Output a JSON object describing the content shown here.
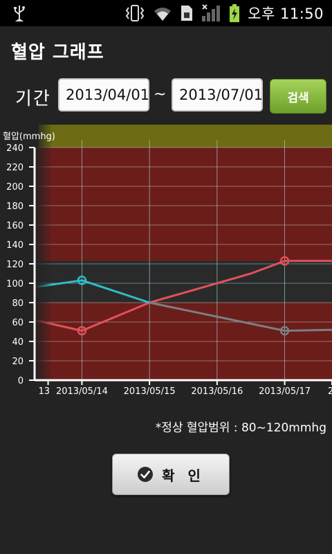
{
  "status_bar": {
    "time": "오후 11:50",
    "icons": [
      "usb-icon",
      "vibrate-icon",
      "wifi-icon",
      "sim-icon",
      "signal-icon",
      "battery-charging-icon"
    ]
  },
  "header": {
    "title": "혈압 그래프"
  },
  "period": {
    "label": "기간",
    "from": "2013/04/01",
    "separator": "~",
    "to": "2013/07/01",
    "search_label": "검색"
  },
  "colors": {
    "accent_green": "#8bbf3f",
    "high_band": "#6b1d1a",
    "top_band": "#6d6b14",
    "series_red": "#e0525a",
    "series_cyan": "#2fbdc7",
    "series_gray": "#7b7f82"
  },
  "chart_data": {
    "type": "line",
    "ylabel": "혈압(mmhg)",
    "ylim": [
      0,
      240
    ],
    "yticks": [
      "0",
      "20",
      "40",
      "60",
      "80",
      "100",
      "120",
      "140",
      "160",
      "180",
      "200",
      "220",
      "240"
    ],
    "x_tick_labels": [
      "13",
      "2013/05/14",
      "2013/05/15",
      "2013/05/16",
      "2013/05/17",
      "2"
    ],
    "x_tick_positions": [
      0.5,
      1,
      2,
      3,
      4,
      4.7
    ],
    "xlim": [
      0.3,
      4.7
    ],
    "normal_range": [
      80,
      120
    ],
    "shaded_above": 123,
    "series": [
      {
        "color": "#e0525a",
        "x": [
          0.3,
          1,
          2,
          3.5,
          4,
          4.7
        ],
        "values": [
          62,
          51,
          80,
          110,
          123,
          123
        ],
        "markers": [
          1,
          4
        ]
      },
      {
        "color": "#2fbdc7",
        "x": [
          0.3,
          1,
          2
        ],
        "values": [
          96,
          103,
          80
        ],
        "markers": [
          1
        ]
      },
      {
        "color": "#7b7f82",
        "x": [
          2,
          4,
          4.7
        ],
        "values": [
          80,
          51,
          52
        ],
        "markers": [
          4
        ]
      }
    ]
  },
  "note": "*정상 혈압범위 : 80~120mmhg",
  "confirm": {
    "label": "확 인",
    "icon": "check-circle-icon"
  }
}
